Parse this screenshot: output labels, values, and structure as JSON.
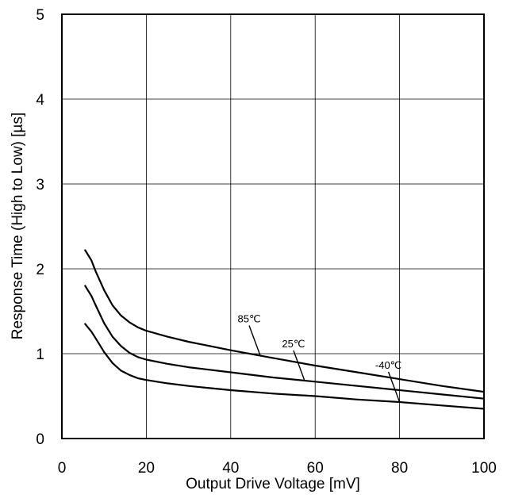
{
  "chart_data": {
    "type": "line",
    "xlabel": "Output Drive Voltage [mV]",
    "ylabel": "Response Time (High to Low) [µs]",
    "xlim": [
      0,
      100
    ],
    "ylim": [
      0,
      5
    ],
    "x_ticks": [
      "0",
      "20",
      "40",
      "60",
      "80",
      "100"
    ],
    "y_ticks": [
      "0",
      "1",
      "2",
      "3",
      "4",
      "5"
    ],
    "grid": true,
    "legend": "none",
    "series": [
      {
        "name": "85℃",
        "color": "#000000",
        "points": [
          [
            5.5,
            2.22
          ],
          [
            7,
            2.1
          ],
          [
            8,
            1.97
          ],
          [
            10,
            1.75
          ],
          [
            12,
            1.57
          ],
          [
            14,
            1.45
          ],
          [
            16,
            1.37
          ],
          [
            18,
            1.31
          ],
          [
            20,
            1.27
          ],
          [
            25,
            1.2
          ],
          [
            30,
            1.14
          ],
          [
            40,
            1.04
          ],
          [
            50,
            0.95
          ],
          [
            60,
            0.86
          ],
          [
            70,
            0.78
          ],
          [
            80,
            0.7
          ],
          [
            90,
            0.62
          ],
          [
            100,
            0.55
          ]
        ]
      },
      {
        "name": "25℃",
        "color": "#000000",
        "points": [
          [
            5.5,
            1.8
          ],
          [
            7,
            1.68
          ],
          [
            8,
            1.57
          ],
          [
            10,
            1.36
          ],
          [
            12,
            1.2
          ],
          [
            14,
            1.09
          ],
          [
            16,
            1.01
          ],
          [
            18,
            0.96
          ],
          [
            20,
            0.93
          ],
          [
            25,
            0.88
          ],
          [
            30,
            0.84
          ],
          [
            40,
            0.78
          ],
          [
            50,
            0.72
          ],
          [
            60,
            0.67
          ],
          [
            70,
            0.62
          ],
          [
            80,
            0.57
          ],
          [
            90,
            0.52
          ],
          [
            100,
            0.47
          ]
        ]
      },
      {
        "name": "-40℃",
        "color": "#000000",
        "points": [
          [
            5.5,
            1.35
          ],
          [
            7,
            1.26
          ],
          [
            8,
            1.18
          ],
          [
            10,
            1.02
          ],
          [
            12,
            0.89
          ],
          [
            14,
            0.8
          ],
          [
            16,
            0.75
          ],
          [
            18,
            0.71
          ],
          [
            20,
            0.69
          ],
          [
            25,
            0.65
          ],
          [
            30,
            0.62
          ],
          [
            40,
            0.57
          ],
          [
            50,
            0.53
          ],
          [
            60,
            0.5
          ],
          [
            70,
            0.46
          ],
          [
            80,
            0.43
          ],
          [
            90,
            0.39
          ],
          [
            100,
            0.35
          ]
        ]
      }
    ],
    "annotations": [
      {
        "text": "85℃",
        "series": 0,
        "at_x": 47
      },
      {
        "text": "25℃",
        "series": 1,
        "at_x": 57.5
      },
      {
        "text": "-40℃",
        "series": 2,
        "at_x": 80
      }
    ]
  }
}
